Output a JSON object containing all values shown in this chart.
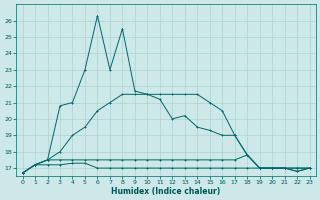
{
  "xlabel": "Humidex (Indice chaleur)",
  "bg_color": "#cce8e8",
  "line_color": "#006666",
  "grid_color": "#b0d0d0",
  "text_color": "#005555",
  "xlim_min": -0.5,
  "xlim_max": 23.5,
  "ylim_min": 16.5,
  "ylim_max": 27.0,
  "yticks": [
    17,
    18,
    19,
    20,
    21,
    22,
    23,
    24,
    25,
    26
  ],
  "xticks": [
    0,
    1,
    2,
    3,
    4,
    5,
    6,
    7,
    8,
    9,
    10,
    11,
    12,
    13,
    14,
    15,
    16,
    17,
    18,
    19,
    20,
    21,
    22,
    23
  ],
  "x": [
    0,
    1,
    2,
    3,
    4,
    5,
    6,
    7,
    8,
    9,
    10,
    11,
    12,
    13,
    14,
    15,
    16,
    17,
    18,
    19,
    20,
    21,
    22,
    23
  ],
  "series1": [
    16.7,
    17.2,
    17.2,
    17.2,
    17.3,
    17.3,
    17.0,
    17.0,
    17.0,
    17.0,
    17.0,
    17.0,
    17.0,
    17.0,
    17.0,
    17.0,
    17.0,
    17.0,
    17.0,
    17.0,
    17.0,
    17.0,
    17.0,
    17.0
  ],
  "series2": [
    16.7,
    17.2,
    17.5,
    17.5,
    17.5,
    17.5,
    17.5,
    17.5,
    17.5,
    17.5,
    17.5,
    17.5,
    17.5,
    17.5,
    17.5,
    17.5,
    17.5,
    17.5,
    17.8,
    17.0,
    17.0,
    17.0,
    17.0,
    17.0
  ],
  "series3": [
    16.7,
    17.2,
    17.5,
    18.0,
    19.0,
    19.5,
    20.5,
    21.0,
    21.5,
    21.5,
    21.5,
    21.5,
    21.5,
    21.5,
    21.5,
    21.0,
    20.5,
    19.0,
    17.8,
    17.0,
    17.0,
    17.0,
    16.8,
    17.0
  ],
  "series4": [
    16.7,
    17.2,
    17.5,
    20.8,
    21.0,
    23.0,
    26.3,
    23.0,
    25.5,
    21.7,
    21.5,
    21.2,
    20.0,
    20.2,
    19.5,
    19.3,
    19.0,
    19.0,
    17.8,
    17.0,
    17.0,
    17.0,
    16.8,
    17.0
  ]
}
